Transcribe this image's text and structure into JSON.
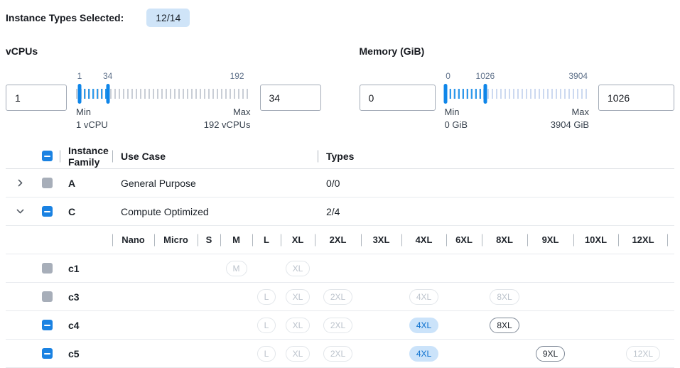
{
  "header": {
    "label": "Instance Types Selected:",
    "badge": "12/14"
  },
  "colors": {
    "accent_blue": "#1a82e2",
    "slider_handle": "#0f86e9",
    "selected_pill_bg": "#cbe3fa",
    "selected_pill_text": "#0c70cf",
    "badge_bg": "#cfe4f8"
  },
  "filters": [
    {
      "title": "vCPUs",
      "min_input": "1",
      "max_input": "34",
      "scale": {
        "low": "1",
        "mid": "34",
        "high": "192"
      },
      "min_label": "Min",
      "min_value": "1 vCPU",
      "max_label": "Max",
      "max_value": "192 vCPUs"
    },
    {
      "title": "Memory (GiB)",
      "min_input": "0",
      "max_input": "1026",
      "scale": {
        "low": "0",
        "mid": "1026",
        "high": "3904"
      },
      "min_label": "Min",
      "min_value": "0 GiB",
      "max_label": "Max",
      "max_value": "3904 GiB"
    }
  ],
  "table": {
    "columns": {
      "family": "Instance Family",
      "use_case": "Use Case",
      "types": "Types"
    },
    "size_columns": [
      "Nano",
      "Micro",
      "S",
      "M",
      "L",
      "XL",
      "2XL",
      "3XL",
      "4XL",
      "6XL",
      "8XL",
      "9XL",
      "10XL",
      "12XL"
    ],
    "rows": [
      {
        "type": "family",
        "family": "A",
        "use_case": "General Purpose",
        "types": "0/0",
        "checkbox": "disabled",
        "expanded": false
      },
      {
        "type": "family",
        "family": "C",
        "use_case": "Compute Optimized",
        "types": "2/4",
        "checkbox": "indeterminate",
        "expanded": true
      },
      {
        "type": "size_header"
      },
      {
        "type": "instance",
        "name": "c1",
        "checkbox": "disabled",
        "pills": [
          {
            "size": "M",
            "state": "disabled"
          },
          {
            "size": "XL",
            "state": "disabled"
          }
        ]
      },
      {
        "type": "instance",
        "name": "c3",
        "checkbox": "disabled",
        "pills": [
          {
            "size": "L",
            "state": "disabled"
          },
          {
            "size": "XL",
            "state": "disabled"
          },
          {
            "size": "2XL",
            "state": "disabled"
          },
          {
            "size": "4XL",
            "state": "disabled"
          },
          {
            "size": "8XL",
            "state": "disabled"
          }
        ]
      },
      {
        "type": "instance",
        "name": "c4",
        "checkbox": "indeterminate",
        "pills": [
          {
            "size": "L",
            "state": "disabled"
          },
          {
            "size": "XL",
            "state": "disabled"
          },
          {
            "size": "2XL",
            "state": "disabled"
          },
          {
            "size": "4XL",
            "state": "selected"
          },
          {
            "size": "8XL",
            "state": "available"
          }
        ]
      },
      {
        "type": "instance",
        "name": "c5",
        "checkbox": "indeterminate",
        "pills": [
          {
            "size": "L",
            "state": "disabled"
          },
          {
            "size": "XL",
            "state": "disabled"
          },
          {
            "size": "2XL",
            "state": "disabled"
          },
          {
            "size": "4XL",
            "state": "selected"
          },
          {
            "size": "9XL",
            "state": "available"
          },
          {
            "size": "12XL",
            "state": "disabled"
          }
        ]
      }
    ]
  }
}
